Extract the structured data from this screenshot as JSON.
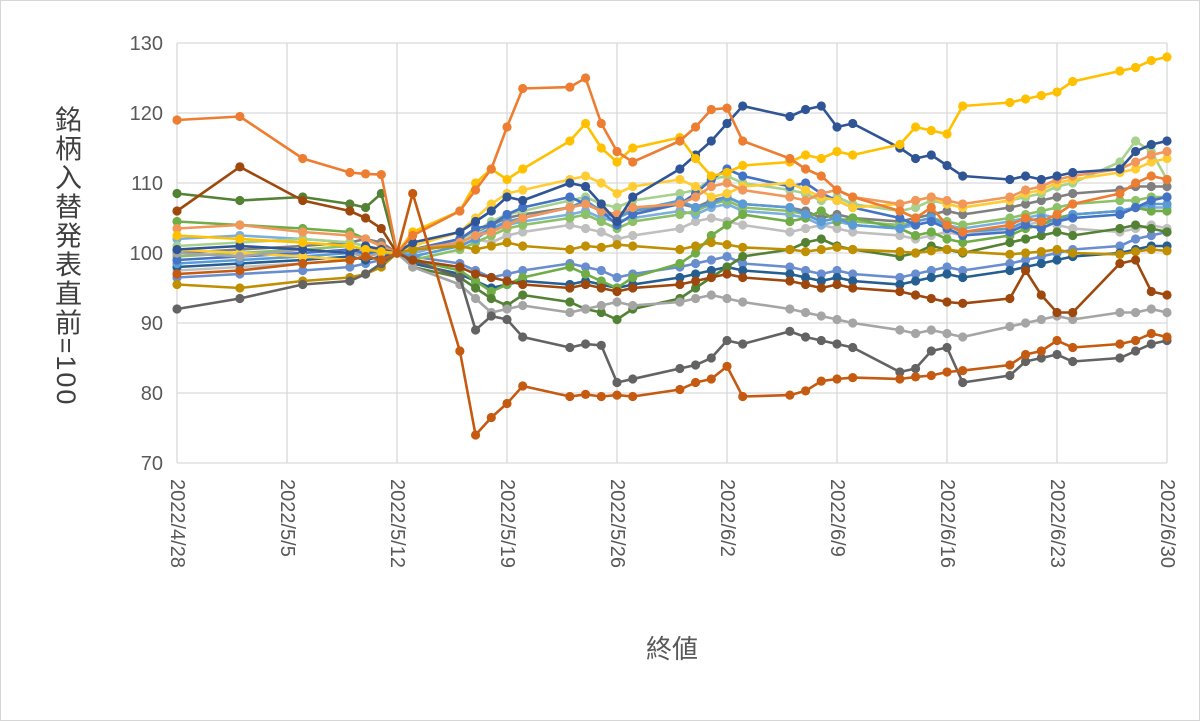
{
  "colors": {
    "background": "#FFFFFF",
    "grid": "#D9D9D9",
    "axis_text": "#595959",
    "title_text": "#404040",
    "frame_border": "#D6D6D6"
  },
  "chart_data": {
    "type": "line",
    "title": "",
    "xlabel": "終値",
    "ylabel": "銘柄入替発表直前=100",
    "ylim": [
      70,
      130
    ],
    "ytick_step": 10,
    "ytick_labels": [
      "70",
      "80",
      "90",
      "100",
      "110",
      "120",
      "130"
    ],
    "grid": true,
    "legend": "none",
    "markers": true,
    "x_tick_labels": [
      "2022/4/28",
      "2022/5/5",
      "2022/5/12",
      "2022/5/19",
      "2022/5/26",
      "2022/6/2",
      "2022/6/9",
      "2022/6/16",
      "2022/6/23",
      "2022/6/30"
    ],
    "x_dates": [
      "2022/4/28",
      "2022/5/2",
      "2022/5/6",
      "2022/5/9",
      "2022/5/10",
      "2022/5/11",
      "2022/5/12",
      "2022/5/13",
      "2022/5/16",
      "2022/5/17",
      "2022/5/18",
      "2022/5/19",
      "2022/5/20",
      "2022/5/23",
      "2022/5/24",
      "2022/5/25",
      "2022/5/26",
      "2022/5/27",
      "2022/5/30",
      "2022/5/31",
      "2022/6/1",
      "2022/6/2",
      "2022/6/3",
      "2022/6/6",
      "2022/6/7",
      "2022/6/8",
      "2022/6/9",
      "2022/6/10",
      "2022/6/13",
      "2022/6/14",
      "2022/6/15",
      "2022/6/16",
      "2022/6/17",
      "2022/6/20",
      "2022/6/21",
      "2022/6/22",
      "2022/6/23",
      "2022/6/24",
      "2022/6/27",
      "2022/6/28",
      "2022/6/29",
      "2022/6/30"
    ],
    "series": [
      {
        "name": "silver",
        "color": "#BFBFBF",
        "values": [
          97.5,
          98.0,
          98.5,
          99.0,
          99.5,
          100.0,
          100.0,
          100.5,
          101.0,
          102.0,
          101.5,
          102.5,
          103.0,
          104.0,
          103.5,
          103.0,
          102.0,
          102.5,
          103.5,
          104.5,
          105.0,
          104.5,
          104.0,
          103.0,
          103.5,
          104.0,
          103.5,
          103.0,
          102.5,
          102.0,
          102.5,
          103.0,
          102.5,
          103.5,
          104.0,
          104.5,
          104.0,
          103.5,
          103.0,
          103.5,
          104.0,
          103.5
        ]
      },
      {
        "name": "gray-medium",
        "color": "#7F7F7F",
        "values": [
          100.0,
          100.5,
          101.0,
          101.5,
          102.0,
          101.5,
          100.0,
          100.5,
          102.0,
          103.0,
          104.0,
          105.0,
          105.5,
          106.5,
          107.0,
          106.0,
          105.5,
          106.0,
          107.0,
          106.5,
          107.5,
          108.0,
          107.0,
          106.5,
          106.0,
          105.0,
          105.5,
          105.0,
          104.5,
          105.0,
          105.5,
          106.0,
          105.5,
          106.5,
          107.0,
          107.5,
          108.0,
          108.5,
          109.0,
          109.5,
          109.5,
          109.5
        ]
      },
      {
        "name": "blue-pale",
        "color": "#7CAFDD",
        "values": [
          102.0,
          102.5,
          102.0,
          101.5,
          101.0,
          100.5,
          100.0,
          100.0,
          101.5,
          102.5,
          103.5,
          104.0,
          104.5,
          105.5,
          106.0,
          105.0,
          104.5,
          105.0,
          106.0,
          105.5,
          106.5,
          107.0,
          106.0,
          105.5,
          105.0,
          104.0,
          104.5,
          104.0,
          103.5,
          104.0,
          104.5,
          104.0,
          103.5,
          104.5,
          105.0,
          105.5,
          105.0,
          105.5,
          106.0,
          106.5,
          106.5,
          106.5
        ]
      },
      {
        "name": "blue-medium",
        "color": "#698ED0",
        "values": [
          96.5,
          97.0,
          97.5,
          98.0,
          98.5,
          99.0,
          100.0,
          99.5,
          98.5,
          97.5,
          96.5,
          97.0,
          97.5,
          98.5,
          98.0,
          97.5,
          96.5,
          97.0,
          98.0,
          98.5,
          99.0,
          99.5,
          98.5,
          98.0,
          97.5,
          97.0,
          97.5,
          97.0,
          96.5,
          97.0,
          97.5,
          98.0,
          97.5,
          98.5,
          99.0,
          99.5,
          100.0,
          100.5,
          101.0,
          102.0,
          102.5,
          103.0
        ]
      },
      {
        "name": "blue-dark-steel",
        "color": "#255E91",
        "values": [
          98.0,
          98.5,
          99.0,
          99.5,
          99.0,
          99.5,
          100.0,
          98.5,
          97.0,
          96.0,
          95.0,
          95.5,
          96.0,
          95.5,
          96.0,
          95.5,
          95.0,
          95.5,
          96.5,
          97.0,
          97.5,
          98.0,
          97.5,
          97.0,
          96.5,
          96.0,
          96.5,
          96.0,
          95.5,
          96.0,
          96.5,
          97.0,
          96.5,
          97.5,
          98.0,
          98.5,
          99.0,
          99.5,
          100.0,
          100.5,
          101.0,
          101.0
        ]
      },
      {
        "name": "green-medium",
        "color": "#8CC168",
        "values": [
          99.5,
          100.0,
          100.5,
          101.0,
          100.5,
          100.2,
          100.0,
          99.0,
          100.5,
          101.5,
          102.5,
          103.5,
          104.0,
          105.0,
          105.5,
          104.5,
          103.5,
          104.5,
          105.5,
          106.0,
          107.0,
          107.5,
          106.5,
          106.0,
          105.5,
          104.5,
          105.0,
          104.5,
          104.0,
          104.5,
          105.0,
          104.5,
          104.0,
          105.0,
          105.5,
          106.0,
          106.5,
          107.0,
          107.5,
          107.5,
          108.0,
          108.0
        ]
      },
      {
        "name": "green-light",
        "color": "#A9D18E",
        "values": [
          101.0,
          101.5,
          102.0,
          101.5,
          101.0,
          100.5,
          100.0,
          100.5,
          102.0,
          103.0,
          104.5,
          105.5,
          106.0,
          107.5,
          108.0,
          107.0,
          106.5,
          107.5,
          108.5,
          109.0,
          110.5,
          111.0,
          110.0,
          109.0,
          108.5,
          107.5,
          108.0,
          107.0,
          106.0,
          106.5,
          107.5,
          107.0,
          106.5,
          107.5,
          108.0,
          108.5,
          109.5,
          110.0,
          113.0,
          116.0,
          114.5,
          110.5
        ]
      },
      {
        "name": "green",
        "color": "#70AD47",
        "values": [
          104.5,
          104.0,
          103.5,
          103.0,
          102.0,
          101.0,
          100.0,
          99.0,
          97.5,
          96.0,
          94.5,
          95.5,
          96.5,
          98.0,
          97.0,
          96.0,
          95.0,
          96.5,
          98.5,
          100.0,
          102.5,
          104.0,
          105.5,
          104.5,
          105.0,
          106.0,
          104.5,
          105.0,
          103.5,
          102.5,
          103.0,
          102.0,
          101.5,
          102.5,
          103.5,
          104.0,
          105.0,
          105.5,
          106.0,
          106.5,
          106.0,
          106.0
        ]
      },
      {
        "name": "green-dark",
        "color": "#548235",
        "values": [
          108.5,
          107.5,
          108.0,
          107.0,
          106.5,
          108.5,
          100.0,
          98.0,
          96.5,
          95.0,
          93.5,
          92.5,
          94.0,
          93.0,
          92.0,
          91.5,
          90.5,
          92.0,
          93.5,
          95.0,
          96.5,
          98.0,
          99.5,
          100.5,
          101.5,
          102.0,
          101.0,
          100.5,
          99.5,
          100.0,
          101.0,
          100.5,
          100.0,
          101.5,
          102.0,
          102.5,
          103.0,
          102.5,
          103.5,
          104.0,
          103.5,
          103.0
        ]
      },
      {
        "name": "blue-light",
        "color": "#5B9BD5",
        "values": [
          98.5,
          99.0,
          99.5,
          100.0,
          99.8,
          100.2,
          100.0,
          99.5,
          101.0,
          102.0,
          103.5,
          104.5,
          105.0,
          106.5,
          107.5,
          106.0,
          105.0,
          106.0,
          107.5,
          106.5,
          107.0,
          108.0,
          107.0,
          106.5,
          105.5,
          104.5,
          105.0,
          104.0,
          103.5,
          104.5,
          105.0,
          104.0,
          103.0,
          103.5,
          104.5,
          105.0,
          104.5,
          105.5,
          106.0,
          106.5,
          107.0,
          107.0
        ]
      },
      {
        "name": "blue",
        "color": "#4472C4",
        "values": [
          99.0,
          99.5,
          100.0,
          100.5,
          100.0,
          100.2,
          100.0,
          100.5,
          102.0,
          103.5,
          104.0,
          105.5,
          106.5,
          108.0,
          107.0,
          106.0,
          104.0,
          105.5,
          107.0,
          108.5,
          110.5,
          112.0,
          111.0,
          109.5,
          110.0,
          108.5,
          107.5,
          106.5,
          105.0,
          104.0,
          104.5,
          103.5,
          102.5,
          103.0,
          104.0,
          103.5,
          104.5,
          105.0,
          105.5,
          106.5,
          107.5,
          108.0
        ]
      },
      {
        "name": "yellow-light",
        "color": "#FFCD33",
        "values": [
          100.5,
          100.0,
          99.5,
          99.0,
          99.5,
          100.0,
          100.0,
          101.0,
          103.0,
          105.0,
          107.0,
          108.5,
          109.0,
          110.5,
          111.0,
          110.0,
          108.5,
          109.5,
          110.5,
          109.5,
          108.0,
          108.5,
          109.5,
          110.0,
          109.0,
          108.0,
          107.5,
          106.5,
          107.0,
          107.5,
          108.0,
          107.0,
          106.5,
          107.5,
          108.5,
          109.0,
          110.0,
          110.5,
          111.5,
          112.0,
          113.0,
          113.5
        ]
      },
      {
        "name": "orange-light",
        "color": "#F1975A",
        "values": [
          103.5,
          104.0,
          103.0,
          102.5,
          102.0,
          101.0,
          100.0,
          100.5,
          101.5,
          102.5,
          103.0,
          104.0,
          105.0,
          106.5,
          107.0,
          106.0,
          105.5,
          106.5,
          107.0,
          108.0,
          109.5,
          110.0,
          109.0,
          108.0,
          107.5,
          108.5,
          109.0,
          108.0,
          107.0,
          107.5,
          108.0,
          107.5,
          107.0,
          108.0,
          109.0,
          109.5,
          110.5,
          111.0,
          112.0,
          113.0,
          114.0,
          114.5
        ]
      },
      {
        "name": "gold",
        "color": "#BF8F00",
        "values": [
          95.5,
          95.0,
          96.0,
          96.5,
          97.0,
          98.0,
          100.0,
          100.5,
          101.0,
          100.5,
          101.0,
          101.5,
          101.0,
          100.5,
          101.0,
          100.8,
          101.2,
          101.0,
          100.5,
          101.0,
          101.5,
          101.2,
          100.8,
          100.5,
          100.2,
          100.5,
          100.8,
          100.5,
          100.2,
          100.0,
          100.3,
          100.5,
          100.2,
          99.8,
          100.0,
          100.2,
          100.5,
          100.0,
          99.8,
          100.2,
          100.5,
          100.3
        ]
      },
      {
        "name": "gray",
        "color": "#A5A5A5",
        "values": [
          100.0,
          99.5,
          100.5,
          100.0,
          99.5,
          100.0,
          100.0,
          98.0,
          95.5,
          93.5,
          91.5,
          92.0,
          92.5,
          91.5,
          92.0,
          92.5,
          93.0,
          92.5,
          93.0,
          93.5,
          94.0,
          93.5,
          93.0,
          92.0,
          91.5,
          91.0,
          90.5,
          90.0,
          89.0,
          88.5,
          89.0,
          88.5,
          88.0,
          89.5,
          90.0,
          90.5,
          91.0,
          90.5,
          91.5,
          91.5,
          92.0,
          91.5
        ]
      },
      {
        "name": "gray-dark",
        "color": "#636363",
        "values": [
          92.0,
          93.5,
          95.5,
          96.0,
          97.0,
          98.5,
          100.0,
          99.0,
          96.5,
          89.0,
          91.0,
          90.5,
          88.0,
          86.5,
          87.0,
          86.8,
          81.5,
          82.0,
          83.5,
          84.0,
          85.0,
          87.5,
          87.0,
          88.8,
          88.0,
          87.5,
          87.0,
          86.5,
          83.0,
          83.5,
          86.0,
          86.5,
          81.5,
          82.5,
          84.5,
          85.0,
          85.5,
          84.5,
          85.0,
          86.0,
          87.0,
          87.5
        ]
      },
      {
        "name": "brown",
        "color": "#9E480E",
        "values": [
          106.0,
          112.3,
          107.5,
          106.0,
          105.0,
          103.5,
          100.0,
          99.0,
          98.0,
          97.0,
          96.5,
          96.0,
          95.5,
          95.0,
          95.5,
          95.0,
          94.5,
          95.0,
          95.5,
          96.0,
          96.5,
          97.0,
          96.5,
          96.0,
          95.5,
          95.0,
          95.5,
          95.0,
          94.5,
          94.0,
          93.5,
          93.0,
          92.8,
          93.5,
          97.5,
          94.0,
          91.5,
          91.5,
          98.5,
          99.0,
          94.5,
          94.0
        ]
      },
      {
        "name": "navy",
        "color": "#2F5597",
        "values": [
          100.5,
          101.0,
          100.5,
          100.0,
          101.0,
          100.5,
          100.0,
          101.5,
          103.0,
          104.5,
          106.0,
          108.0,
          107.5,
          110.0,
          109.5,
          107.0,
          104.5,
          108.0,
          112.0,
          114.0,
          116.0,
          118.5,
          121.0,
          119.5,
          120.5,
          121.0,
          118.0,
          118.5,
          115.0,
          113.5,
          114.0,
          112.5,
          111.0,
          110.5,
          111.0,
          110.5,
          111.0,
          111.5,
          112.0,
          114.5,
          115.5,
          116.0
        ]
      },
      {
        "name": "yellow",
        "color": "#FFC000",
        "values": [
          102.5,
          102.0,
          101.5,
          101.0,
          100.5,
          100.2,
          100.0,
          103.0,
          106.0,
          110.0,
          112.0,
          110.5,
          112.0,
          116.0,
          118.5,
          115.0,
          113.0,
          115.0,
          116.5,
          113.5,
          111.0,
          111.5,
          112.5,
          113.0,
          114.0,
          113.5,
          114.5,
          114.0,
          115.5,
          118.0,
          117.5,
          117.0,
          121.0,
          121.5,
          122.0,
          122.5,
          123.0,
          124.5,
          126.0,
          126.5,
          127.5,
          128.0
        ]
      },
      {
        "name": "orange",
        "color": "#ED7D31",
        "values": [
          119.0,
          119.5,
          113.5,
          111.5,
          111.3,
          111.2,
          100.0,
          102.5,
          106.0,
          109.0,
          112.0,
          118.0,
          123.5,
          123.7,
          125.0,
          118.5,
          114.5,
          113.0,
          116.0,
          118.0,
          120.5,
          120.7,
          116.0,
          113.5,
          112.0,
          111.0,
          109.0,
          108.0,
          106.0,
          105.0,
          106.5,
          104.0,
          103.0,
          104.0,
          105.0,
          104.5,
          105.5,
          107.0,
          108.5,
          110.0,
          111.0,
          110.5
        ]
      },
      {
        "name": "orange-dark",
        "color": "#C55A11",
        "values": [
          97.0,
          97.5,
          98.5,
          99.0,
          99.5,
          99.0,
          100.0,
          108.5,
          86.0,
          74.0,
          76.5,
          78.5,
          81.0,
          79.5,
          79.8,
          79.5,
          79.7,
          79.5,
          80.5,
          81.5,
          82.0,
          83.8,
          79.5,
          79.7,
          80.3,
          81.7,
          82.0,
          82.2,
          82.0,
          82.3,
          82.5,
          83.0,
          83.2,
          84.0,
          85.5,
          86.0,
          87.5,
          86.5,
          87.0,
          87.5,
          88.5,
          88.0
        ]
      }
    ]
  }
}
